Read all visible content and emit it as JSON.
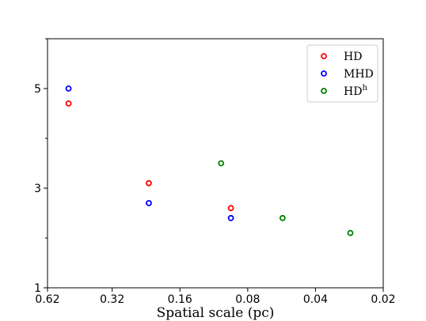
{
  "chart_data": {
    "type": "scatter",
    "xlabel": "Spatial scale (pc)",
    "ylabel": "",
    "x_scale": "log",
    "x_reversed": true,
    "xlim": [
      0.62,
      0.02
    ],
    "ylim": [
      1,
      6
    ],
    "x_ticks": [
      "0.62",
      "0.32",
      "0.16",
      "0.08",
      "0.04",
      "0.02"
    ],
    "x_tick_values": [
      0.62,
      0.32,
      0.16,
      0.08,
      0.04,
      0.02
    ],
    "y_ticks": [
      "1",
      "3",
      "5"
    ],
    "y_tick_values": [
      1,
      3,
      5
    ],
    "y_minor_ticks": [
      2,
      4,
      6
    ],
    "grid": false,
    "legend_position": "top-right",
    "series": [
      {
        "name": "HD",
        "color": "#ff0000",
        "points": [
          {
            "x": 0.5,
            "y": 4.7
          },
          {
            "x": 0.22,
            "y": 3.1
          },
          {
            "x": 0.095,
            "y": 2.6
          }
        ]
      },
      {
        "name": "MHD",
        "color": "#0000ff",
        "points": [
          {
            "x": 0.5,
            "y": 5.0
          },
          {
            "x": 0.22,
            "y": 2.7
          },
          {
            "x": 0.095,
            "y": 2.4
          }
        ]
      },
      {
        "name": "HD",
        "name_superscript": "h",
        "color": "#008000",
        "points": [
          {
            "x": 0.105,
            "y": 3.5
          },
          {
            "x": 0.056,
            "y": 2.4
          },
          {
            "x": 0.028,
            "y": 2.1
          }
        ]
      }
    ]
  }
}
